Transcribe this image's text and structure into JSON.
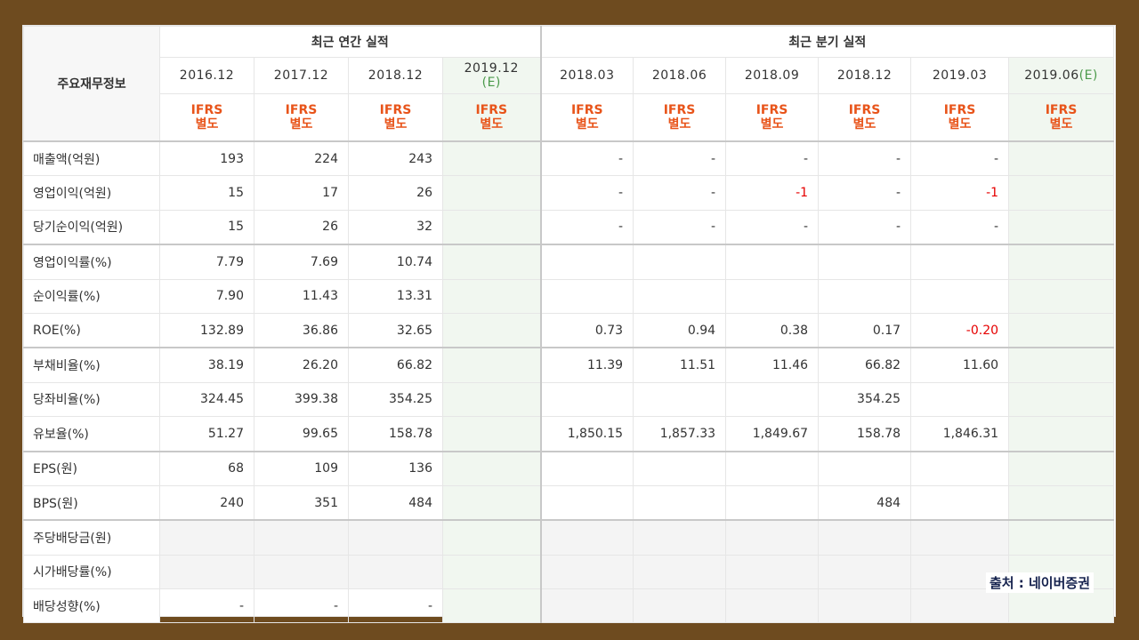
{
  "header": {
    "corner_label": "주요재무정보",
    "annual_group": "최근 연간 실적",
    "quarter_group": "최근 분기 실적",
    "periods": [
      {
        "label": "2016.12",
        "est": ""
      },
      {
        "label": "2017.12",
        "est": ""
      },
      {
        "label": "2018.12",
        "est": ""
      },
      {
        "label": "2019.12",
        "est": "(E)"
      },
      {
        "label": "2018.03",
        "est": ""
      },
      {
        "label": "2018.06",
        "est": ""
      },
      {
        "label": "2018.09",
        "est": ""
      },
      {
        "label": "2018.12",
        "est": ""
      },
      {
        "label": "2019.03",
        "est": ""
      },
      {
        "label": "2019.06",
        "est": "(E)"
      }
    ],
    "acc_line1": "IFRS",
    "acc_line2": "별도"
  },
  "rows": [
    {
      "label": "매출액(억원)",
      "values": [
        "193",
        "224",
        "243",
        "",
        "-",
        "-",
        "-",
        "-",
        "-",
        ""
      ]
    },
    {
      "label": "영업이익(억원)",
      "values": [
        "15",
        "17",
        "26",
        "",
        "-",
        "-",
        "-1",
        "-",
        "-1",
        ""
      ]
    },
    {
      "label": "당기순이익(억원)",
      "values": [
        "15",
        "26",
        "32",
        "",
        "-",
        "-",
        "-",
        "-",
        "-",
        ""
      ]
    },
    {
      "label": "영업이익률(%)",
      "values": [
        "7.79",
        "7.69",
        "10.74",
        "",
        "",
        "",
        "",
        "",
        "",
        ""
      ]
    },
    {
      "label": "순이익률(%)",
      "values": [
        "7.90",
        "11.43",
        "13.31",
        "",
        "",
        "",
        "",
        "",
        "",
        ""
      ]
    },
    {
      "label": "ROE(%)",
      "values": [
        "132.89",
        "36.86",
        "32.65",
        "",
        "0.73",
        "0.94",
        "0.38",
        "0.17",
        "-0.20",
        ""
      ]
    },
    {
      "label": "부채비율(%)",
      "values": [
        "38.19",
        "26.20",
        "66.82",
        "",
        "11.39",
        "11.51",
        "11.46",
        "66.82",
        "11.60",
        ""
      ]
    },
    {
      "label": "당좌비율(%)",
      "values": [
        "324.45",
        "399.38",
        "354.25",
        "",
        "",
        "",
        "",
        "354.25",
        "",
        ""
      ]
    },
    {
      "label": "유보율(%)",
      "values": [
        "51.27",
        "99.65",
        "158.78",
        "",
        "1,850.15",
        "1,857.33",
        "1,849.67",
        "158.78",
        "1,846.31",
        ""
      ]
    },
    {
      "label": "EPS(원)",
      "values": [
        "68",
        "109",
        "136",
        "",
        "",
        "",
        "",
        "",
        "",
        ""
      ]
    },
    {
      "label": "BPS(원)",
      "values": [
        "240",
        "351",
        "484",
        "",
        "",
        "",
        "",
        "484",
        "",
        ""
      ]
    },
    {
      "label": "주당배당금(원)",
      "values": [
        "",
        "",
        "",
        "",
        "",
        "",
        "",
        "",
        "",
        ""
      ]
    },
    {
      "label": "시가배당률(%)",
      "values": [
        "",
        "",
        "",
        "",
        "",
        "",
        "",
        "",
        "",
        ""
      ]
    },
    {
      "label": "배당성향(%)",
      "values": [
        "-",
        "-",
        "-",
        "",
        "",
        "",
        "",
        "",
        "",
        ""
      ]
    }
  ],
  "source": "출처 : 네이버증권",
  "colors": {
    "frame": "#6e4b1f",
    "accounting": "#e8541a",
    "estimate_bg": "#f1f7f0",
    "negative": "#e60000"
  }
}
